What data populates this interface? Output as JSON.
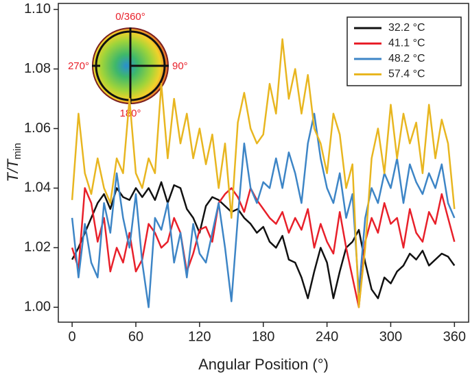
{
  "chart_data": {
    "type": "line",
    "xlabel": "Angular Position (°)",
    "ylabel": "T/T",
    "ylabel_sub": "min",
    "x": [
      0,
      6,
      12,
      18,
      24,
      30,
      36,
      42,
      48,
      54,
      60,
      66,
      72,
      78,
      84,
      90,
      96,
      102,
      108,
      114,
      120,
      126,
      132,
      138,
      144,
      150,
      156,
      162,
      168,
      174,
      180,
      186,
      192,
      198,
      204,
      210,
      216,
      222,
      228,
      234,
      240,
      246,
      252,
      258,
      264,
      270,
      276,
      282,
      288,
      294,
      300,
      306,
      312,
      318,
      324,
      330,
      336,
      342,
      348,
      354,
      360
    ],
    "series": [
      {
        "name": "32.2 °C",
        "color": "#111111",
        "values": [
          1.016,
          1.02,
          1.025,
          1.03,
          1.035,
          1.038,
          1.033,
          1.04,
          1.037,
          1.036,
          1.04,
          1.037,
          1.04,
          1.036,
          1.042,
          1.035,
          1.041,
          1.04,
          1.033,
          1.03,
          1.025,
          1.034,
          1.037,
          1.036,
          1.034,
          1.032,
          1.033,
          1.03,
          1.028,
          1.025,
          1.027,
          1.022,
          1.02,
          1.024,
          1.016,
          1.015,
          1.01,
          1.003,
          1.012,
          1.02,
          1.015,
          1.003,
          1.012,
          1.02,
          1.022,
          1.026,
          1.015,
          1.006,
          1.003,
          1.01,
          1.008,
          1.012,
          1.014,
          1.018,
          1.016,
          1.019,
          1.014,
          1.016,
          1.018,
          1.017,
          1.014
        ]
      },
      {
        "name": "41.1 °C",
        "color": "#e8202a",
        "values": [
          1.02,
          1.013,
          1.04,
          1.035,
          1.022,
          1.03,
          1.012,
          1.02,
          1.015,
          1.025,
          1.012,
          1.016,
          1.028,
          1.025,
          1.02,
          1.022,
          1.03,
          1.025,
          1.012,
          1.018,
          1.026,
          1.027,
          1.022,
          1.035,
          1.038,
          1.04,
          1.037,
          1.032,
          1.04,
          1.036,
          1.033,
          1.03,
          1.028,
          1.032,
          1.025,
          1.03,
          1.026,
          1.033,
          1.02,
          1.028,
          1.022,
          1.018,
          1.032,
          1.02,
          1.01,
          1.0,
          1.022,
          1.03,
          1.025,
          1.035,
          1.028,
          1.03,
          1.02,
          1.033,
          1.025,
          1.022,
          1.032,
          1.028,
          1.038,
          1.03,
          1.022
        ]
      },
      {
        "name": "48.2 °C",
        "color": "#3d85c6",
        "values": [
          1.03,
          1.01,
          1.028,
          1.015,
          1.01,
          1.035,
          1.025,
          1.045,
          1.03,
          1.02,
          1.038,
          1.015,
          1.0,
          1.03,
          1.026,
          1.035,
          1.015,
          1.025,
          1.01,
          1.028,
          1.018,
          1.015,
          1.025,
          1.035,
          1.02,
          1.002,
          1.03,
          1.055,
          1.04,
          1.035,
          1.042,
          1.04,
          1.05,
          1.04,
          1.052,
          1.045,
          1.035,
          1.055,
          1.065,
          1.05,
          1.04,
          1.035,
          1.045,
          1.03,
          1.038,
          1.005,
          1.03,
          1.04,
          1.035,
          1.045,
          1.04,
          1.05,
          1.035,
          1.048,
          1.042,
          1.038,
          1.045,
          1.04,
          1.048,
          1.035,
          1.03
        ]
      },
      {
        "name": "57.4 °C",
        "color": "#e8b620",
        "values": [
          1.036,
          1.065,
          1.045,
          1.038,
          1.05,
          1.04,
          1.035,
          1.05,
          1.045,
          1.07,
          1.045,
          1.04,
          1.05,
          1.045,
          1.075,
          1.05,
          1.07,
          1.055,
          1.065,
          1.05,
          1.06,
          1.048,
          1.058,
          1.04,
          1.055,
          1.03,
          1.062,
          1.072,
          1.06,
          1.055,
          1.058,
          1.075,
          1.065,
          1.09,
          1.07,
          1.08,
          1.065,
          1.078,
          1.06,
          1.055,
          1.045,
          1.065,
          1.058,
          1.04,
          1.048,
          1.0,
          1.02,
          1.05,
          1.06,
          1.045,
          1.068,
          1.05,
          1.065,
          1.055,
          1.062,
          1.045,
          1.068,
          1.05,
          1.063,
          1.055,
          1.033
        ]
      }
    ],
    "xlim": [
      -13,
      374
    ],
    "ylim": [
      0.995,
      1.102
    ],
    "xticks": [
      0,
      60,
      120,
      180,
      240,
      300,
      360
    ],
    "yticks": [
      {
        "value": 1,
        "label": "1.00"
      },
      1.02,
      1.04,
      1.06,
      1.08,
      {
        "value": 1.1,
        "label": "1.10"
      }
    ],
    "legend": "upper right",
    "annotations": [
      "0/360°",
      "90°",
      "180°",
      "270°"
    ],
    "annotation_color": "#e8202a"
  }
}
